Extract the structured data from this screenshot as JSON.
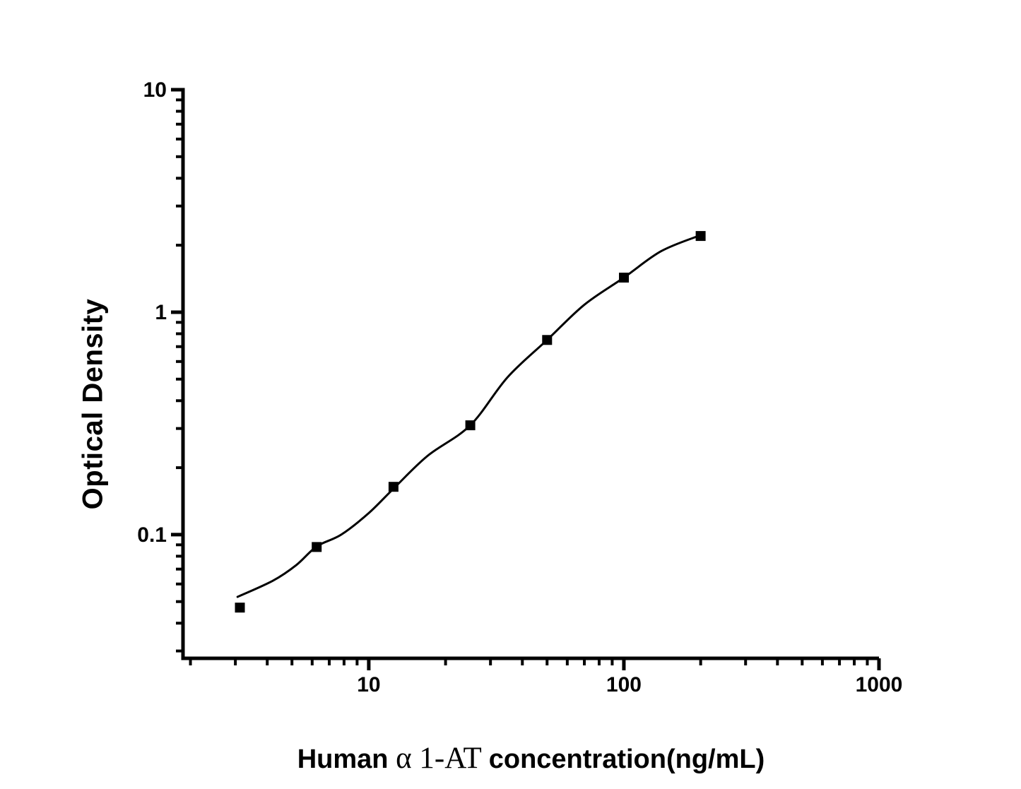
{
  "page": {
    "background": "#ffffff"
  },
  "chart_data": {
    "type": "scatter",
    "title": "",
    "xlabel": "Human α 1-AT concentration(ng/mL)",
    "xlabel_parts": [
      {
        "text": "Human ",
        "style": "sans-bold"
      },
      {
        "text": "α 1-AT ",
        "style": "serif"
      },
      {
        "text": "concentration(ng/mL)",
        "style": "sans-bold"
      }
    ],
    "ylabel": "Optical Density",
    "x_scale": "log",
    "y_scale": "log",
    "xlim": [
      1.87,
      1000
    ],
    "ylim": [
      0.0278,
      10
    ],
    "grid": false,
    "legend": false,
    "axis_color": "#000000",
    "marker": "filled-square",
    "x_major_ticks": [
      {
        "value": 10,
        "label": "10"
      },
      {
        "value": 100,
        "label": "100"
      },
      {
        "value": 1000,
        "label": "1000"
      }
    ],
    "x_minor_ticks": [
      2,
      3,
      4,
      5,
      6,
      7,
      8,
      9,
      20,
      30,
      40,
      50,
      60,
      70,
      80,
      90,
      200,
      300,
      400,
      500,
      600,
      700,
      800,
      900
    ],
    "y_major_ticks": [
      {
        "value": 0.1,
        "label": "0.1"
      },
      {
        "value": 1,
        "label": "1"
      },
      {
        "value": 10,
        "label": "10"
      }
    ],
    "y_minor_ticks": [
      0.03,
      0.04,
      0.05,
      0.06,
      0.07,
      0.08,
      0.09,
      0.2,
      0.3,
      0.4,
      0.5,
      0.6,
      0.7,
      0.8,
      0.9,
      2,
      3,
      4,
      5,
      6,
      7,
      8,
      9
    ],
    "series": [
      {
        "name": "standard-curve-points",
        "color": "#000000",
        "points": [
          {
            "x": 3.125,
            "y": 0.047
          },
          {
            "x": 6.25,
            "y": 0.088
          },
          {
            "x": 12.5,
            "y": 0.164
          },
          {
            "x": 25,
            "y": 0.31
          },
          {
            "x": 50,
            "y": 0.75
          },
          {
            "x": 100,
            "y": 1.43
          },
          {
            "x": 200,
            "y": 2.2
          }
        ]
      }
    ],
    "fit_curve": [
      [
        3.06,
        0.0525
      ],
      [
        4.2,
        0.062
      ],
      [
        5.2,
        0.073
      ],
      [
        6.25,
        0.0885
      ],
      [
        7.8,
        0.1
      ],
      [
        10,
        0.125
      ],
      [
        12.5,
        0.161
      ],
      [
        17,
        0.226
      ],
      [
        25,
        0.31
      ],
      [
        35,
        0.51
      ],
      [
        50,
        0.75
      ],
      [
        70,
        1.08
      ],
      [
        100,
        1.43
      ],
      [
        140,
        1.88
      ],
      [
        200,
        2.22
      ]
    ]
  }
}
